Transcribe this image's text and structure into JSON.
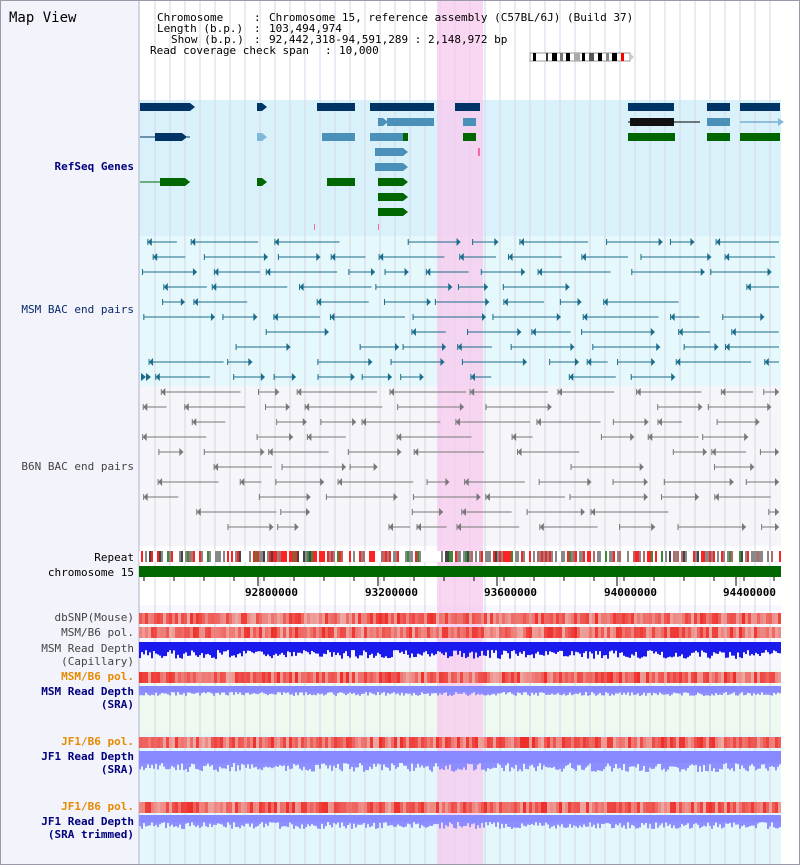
{
  "title": "Map View",
  "info": {
    "chromosome_label": "Chromosome",
    "chromosome_value": "Chromosome 15, reference assembly (C57BL/6J) (Build 37)",
    "length_label": "Length (b.p.)",
    "length_value": "103,494,974",
    "show_label": "Show (b.p.)",
    "show_value": "92,442,318-94,591,289 : 2,148,972 bp",
    "coverage_label": "Read coverage check span",
    "coverage_value": "10,000"
  },
  "tracks": {
    "refseq": "RefSeq Genes",
    "msm_bac": "MSM BAC end pairs",
    "b6n_bac": "B6N BAC end pairs",
    "repeat": "Repeat",
    "chromosome": "chromosome 15",
    "dbsnp": "dbSNP(Mouse)",
    "msm_b6_pol_1": "MSM/B6 pol.",
    "msm_depth_cap_1": "MSM Read Depth",
    "msm_depth_cap_2": "(Capillary)",
    "msm_b6_pol_2": "MSM/B6 pol.",
    "msm_depth_sra_1": "MSM Read Depth",
    "msm_depth_sra_2": "(SRA)",
    "jf1_b6_pol_1": "JF1/B6 pol.",
    "jf1_depth_sra_1": "JF1 Read Depth",
    "jf1_depth_sra_2": "(SRA)",
    "jf1_b6_pol_2": "JF1/B6 pol.",
    "jf1_depth_trim_1": "JF1 Read Depth",
    "jf1_depth_trim_2": "(SRA trimmed)"
  },
  "axis_ticks": [
    "92800000",
    "93200000",
    "93600000",
    "94000000",
    "94400000"
  ],
  "colors": {
    "refseq_bg": "#d9f1fb",
    "msm_bac_bg": "#e5f8fc",
    "b6n_bac_bg": "#f5f5fa",
    "gene_dark": "#003366",
    "gene_mid": "#4a90b8",
    "gene_light": "#7fb8d8",
    "gene_green": "#006600",
    "msm_pair": "#1a6c8a",
    "b6n_pair": "#777777",
    "chromosome_bar": "#006600",
    "highlight": "#f7c9ee",
    "snp_red": "#ee3333",
    "depth_blue": "#1a1aee",
    "depth_light_blue": "#8888ff"
  },
  "icons": [
    "chromosome-ideogram-icon"
  ]
}
